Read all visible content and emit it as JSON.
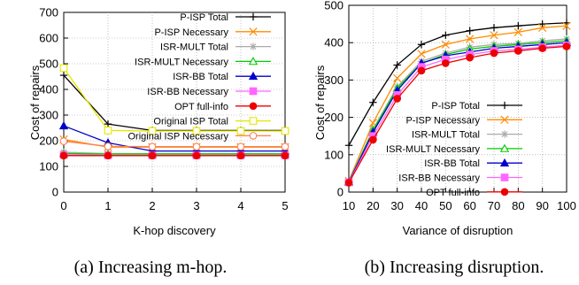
{
  "chart_data": [
    {
      "type": "line",
      "xlabel": "K-hop discovery",
      "ylabel": "Cost of repairs",
      "x": [
        0,
        1,
        2,
        3,
        4,
        5
      ],
      "xlim": [
        0,
        5
      ],
      "ylim": [
        0,
        700
      ],
      "xticks": [
        "0",
        "1",
        "2",
        "3",
        "4",
        "5"
      ],
      "yticks": [
        "0",
        "100",
        "200",
        "300",
        "400",
        "500",
        "600",
        "700"
      ],
      "grid": true,
      "legend_position": "top-right",
      "caption": "(a) Increasing m-hop.",
      "series": [
        {
          "name": "P-ISP Total",
          "color": "#000000",
          "marker": "plus",
          "values": [
            455,
            265,
            240,
            240,
            240,
            240
          ]
        },
        {
          "name": "P-ISP Necessary",
          "color": "#ff8c00",
          "marker": "x",
          "values": [
            205,
            175,
            175,
            175,
            175,
            175
          ]
        },
        {
          "name": "ISR-MULT Total",
          "color": "#aaaaaa",
          "marker": "asterisk",
          "values": [
            155,
            150,
            150,
            150,
            150,
            150
          ]
        },
        {
          "name": "ISR-MULT Necessary",
          "color": "#00cc00",
          "marker": "triangle-open",
          "values": [
            150,
            148,
            148,
            148,
            148,
            148
          ]
        },
        {
          "name": "ISR-BB Total",
          "color": "#0000cc",
          "marker": "triangle",
          "values": [
            258,
            192,
            160,
            160,
            160,
            160
          ]
        },
        {
          "name": "ISR-BB Necessary",
          "color": "#ff66ff",
          "marker": "square",
          "values": [
            145,
            143,
            143,
            143,
            143,
            143
          ]
        },
        {
          "name": "OPT full-info",
          "color": "#ee0000",
          "marker": "circle",
          "values": [
            142,
            142,
            142,
            142,
            142,
            142
          ]
        },
        {
          "name": "Original ISP Total",
          "color": "#e6e600",
          "marker": "square-open",
          "values": [
            483,
            240,
            238,
            238,
            238,
            238
          ]
        },
        {
          "name": "Original ISP Necessary",
          "color": "#ff7f50",
          "marker": "circle-open",
          "values": [
            198,
            178,
            177,
            177,
            177,
            177
          ]
        }
      ]
    },
    {
      "type": "line",
      "xlabel": "Variance of disruption",
      "ylabel": "Cost of repairs",
      "x": [
        10,
        20,
        30,
        40,
        50,
        60,
        70,
        80,
        90,
        100
      ],
      "xlim": [
        10,
        100
      ],
      "ylim": [
        0,
        500
      ],
      "xticks": [
        "10",
        "20",
        "30",
        "40",
        "50",
        "60",
        "70",
        "80",
        "90",
        "100"
      ],
      "yticks": [
        "0",
        "100",
        "200",
        "300",
        "400",
        "500"
      ],
      "grid": true,
      "legend_position": "bottom-right",
      "caption": "(b) Increasing disruption.",
      "series": [
        {
          "name": "P-ISP Total",
          "color": "#000000",
          "marker": "plus",
          "values": [
            125,
            240,
            340,
            395,
            420,
            432,
            440,
            445,
            450,
            453
          ]
        },
        {
          "name": "P-ISP Necessary",
          "color": "#ff8c00",
          "marker": "x",
          "values": [
            30,
            185,
            305,
            370,
            395,
            410,
            420,
            428,
            440,
            445
          ]
        },
        {
          "name": "ISR-MULT Total",
          "color": "#aaaaaa",
          "marker": "asterisk",
          "values": [
            28,
            168,
            282,
            350,
            372,
            388,
            395,
            398,
            405,
            410
          ]
        },
        {
          "name": "ISR-MULT Necessary",
          "color": "#00cc00",
          "marker": "triangle-open",
          "values": [
            27,
            165,
            278,
            345,
            368,
            383,
            390,
            395,
            400,
            405
          ]
        },
        {
          "name": "ISR-BB Total",
          "color": "#0000cc",
          "marker": "triangle",
          "values": [
            27,
            160,
            272,
            345,
            365,
            375,
            385,
            390,
            395,
            400
          ]
        },
        {
          "name": "ISR-BB Necessary",
          "color": "#ff66ff",
          "marker": "square",
          "values": [
            26,
            150,
            260,
            335,
            355,
            368,
            378,
            382,
            388,
            393
          ]
        },
        {
          "name": "OPT full-info",
          "color": "#ee0000",
          "marker": "circle",
          "values": [
            25,
            140,
            250,
            325,
            345,
            360,
            372,
            378,
            385,
            390
          ]
        }
      ]
    }
  ]
}
